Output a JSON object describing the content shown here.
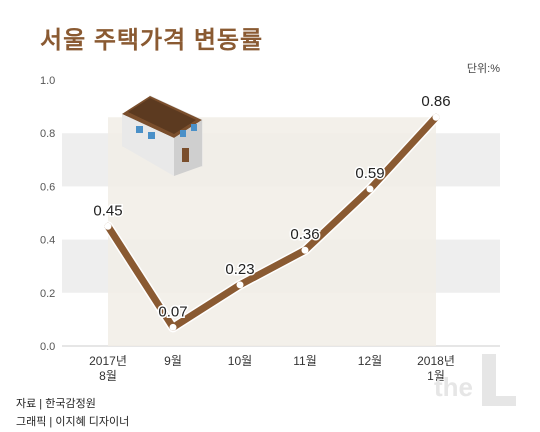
{
  "header": {
    "title": "서울 주택가격 변동률",
    "unit": "단위:%"
  },
  "footer": {
    "source": "자료 | 한국감정원",
    "credit": "그래픽 | 이지혜 디자이너"
  },
  "watermark": {
    "text": "the"
  },
  "icons": {
    "illustration": "house-icon",
    "logo": "the-l-logo-icon"
  },
  "colors": {
    "title": "#8a5a32",
    "line": "#8a5a32",
    "band": "#eeeeee",
    "area": "#f1ede6"
  },
  "chart_data": {
    "type": "line",
    "categories": [
      "2017년\n8월",
      "9월",
      "10월",
      "11월",
      "12월",
      "2018년\n1월"
    ],
    "values": [
      0.45,
      0.07,
      0.23,
      0.36,
      0.59,
      0.86
    ],
    "data_labels": [
      "0.45",
      "0.07",
      "0.23",
      "0.36",
      "0.59",
      "0.86"
    ],
    "y_ticks": [
      "0.0",
      "0.2",
      "0.4",
      "0.6",
      "0.8",
      "1.0"
    ],
    "ylim": [
      0,
      1.0
    ],
    "grid": "alternating horizontal bands",
    "legend": "none"
  }
}
